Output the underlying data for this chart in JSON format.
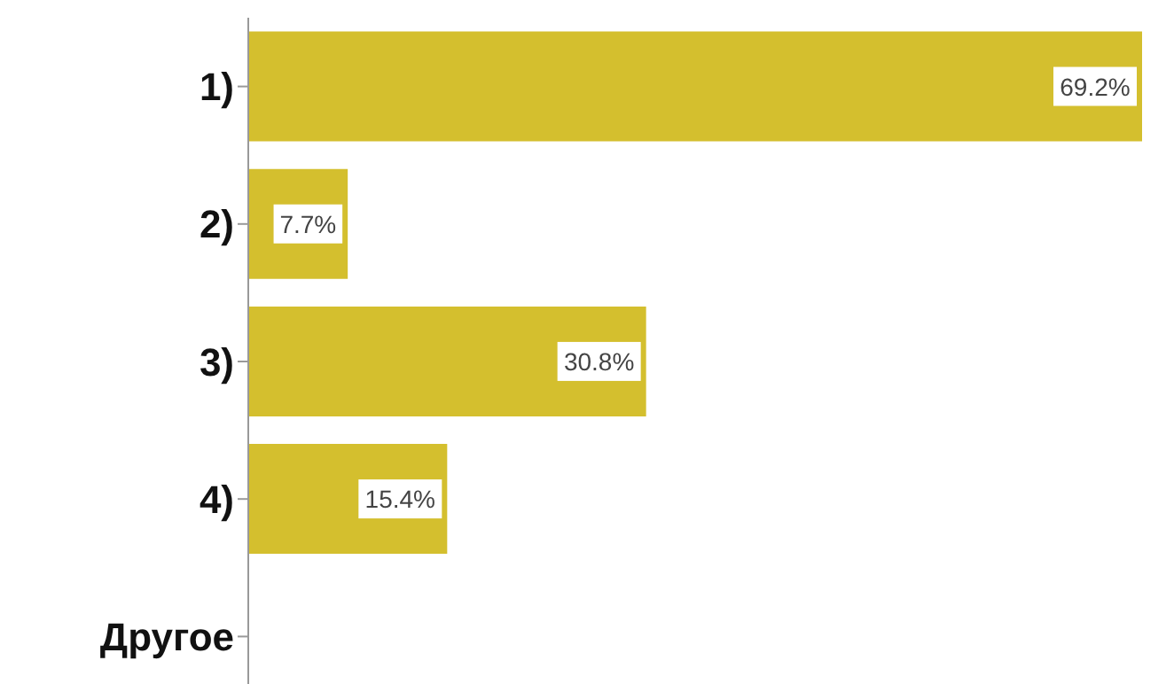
{
  "chart_data": {
    "type": "bar",
    "orientation": "horizontal",
    "categories": [
      "1)",
      "2)",
      "3)",
      "4)",
      "Другое"
    ],
    "values": [
      69.2,
      7.7,
      30.8,
      15.4,
      null
    ],
    "value_labels": [
      "69.2%",
      "7.7%",
      "30.8%",
      "15.4%",
      null
    ],
    "color": "#d4bf2e",
    "tick_labels": "y"
  }
}
